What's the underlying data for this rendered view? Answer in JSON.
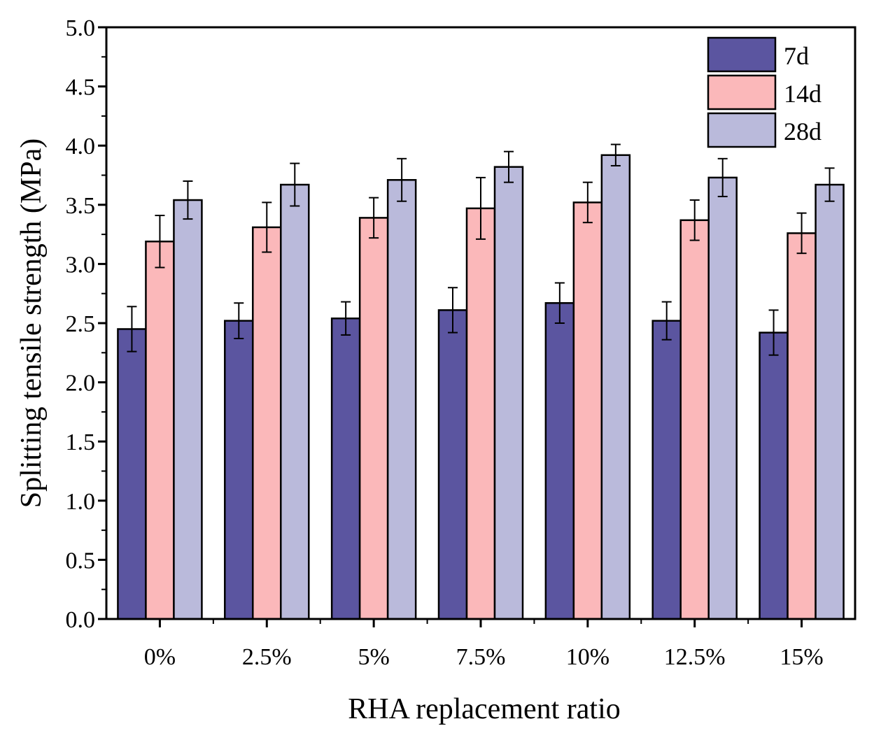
{
  "chart_data": {
    "type": "bar",
    "title": "",
    "xlabel": "RHA replacement ratio",
    "ylabel": "Splitting tensile strength (MPa)",
    "ylim": [
      0,
      5.0
    ],
    "yticks": [
      "0.0",
      "0.5",
      "1.0",
      "1.5",
      "2.0",
      "2.5",
      "3.0",
      "3.5",
      "4.0",
      "4.5",
      "5.0"
    ],
    "categories": [
      "0%",
      "2.5%",
      "5%",
      "7.5%",
      "10%",
      "12.5%",
      "15%"
    ],
    "legend_position": "top-right",
    "series": [
      {
        "name": "7d",
        "color": "#5b55a0",
        "values": [
          2.45,
          2.52,
          2.54,
          2.61,
          2.67,
          2.52,
          2.42
        ],
        "errors": [
          0.19,
          0.15,
          0.14,
          0.19,
          0.17,
          0.16,
          0.19
        ]
      },
      {
        "name": "14d",
        "color": "#fbb8ba",
        "values": [
          3.19,
          3.31,
          3.39,
          3.47,
          3.52,
          3.37,
          3.26
        ],
        "errors": [
          0.22,
          0.21,
          0.17,
          0.26,
          0.17,
          0.17,
          0.17
        ]
      },
      {
        "name": "28d",
        "color": "#babadb",
        "values": [
          3.54,
          3.67,
          3.71,
          3.82,
          3.92,
          3.73,
          3.67
        ],
        "errors": [
          0.16,
          0.18,
          0.18,
          0.13,
          0.09,
          0.16,
          0.14
        ]
      }
    ]
  }
}
